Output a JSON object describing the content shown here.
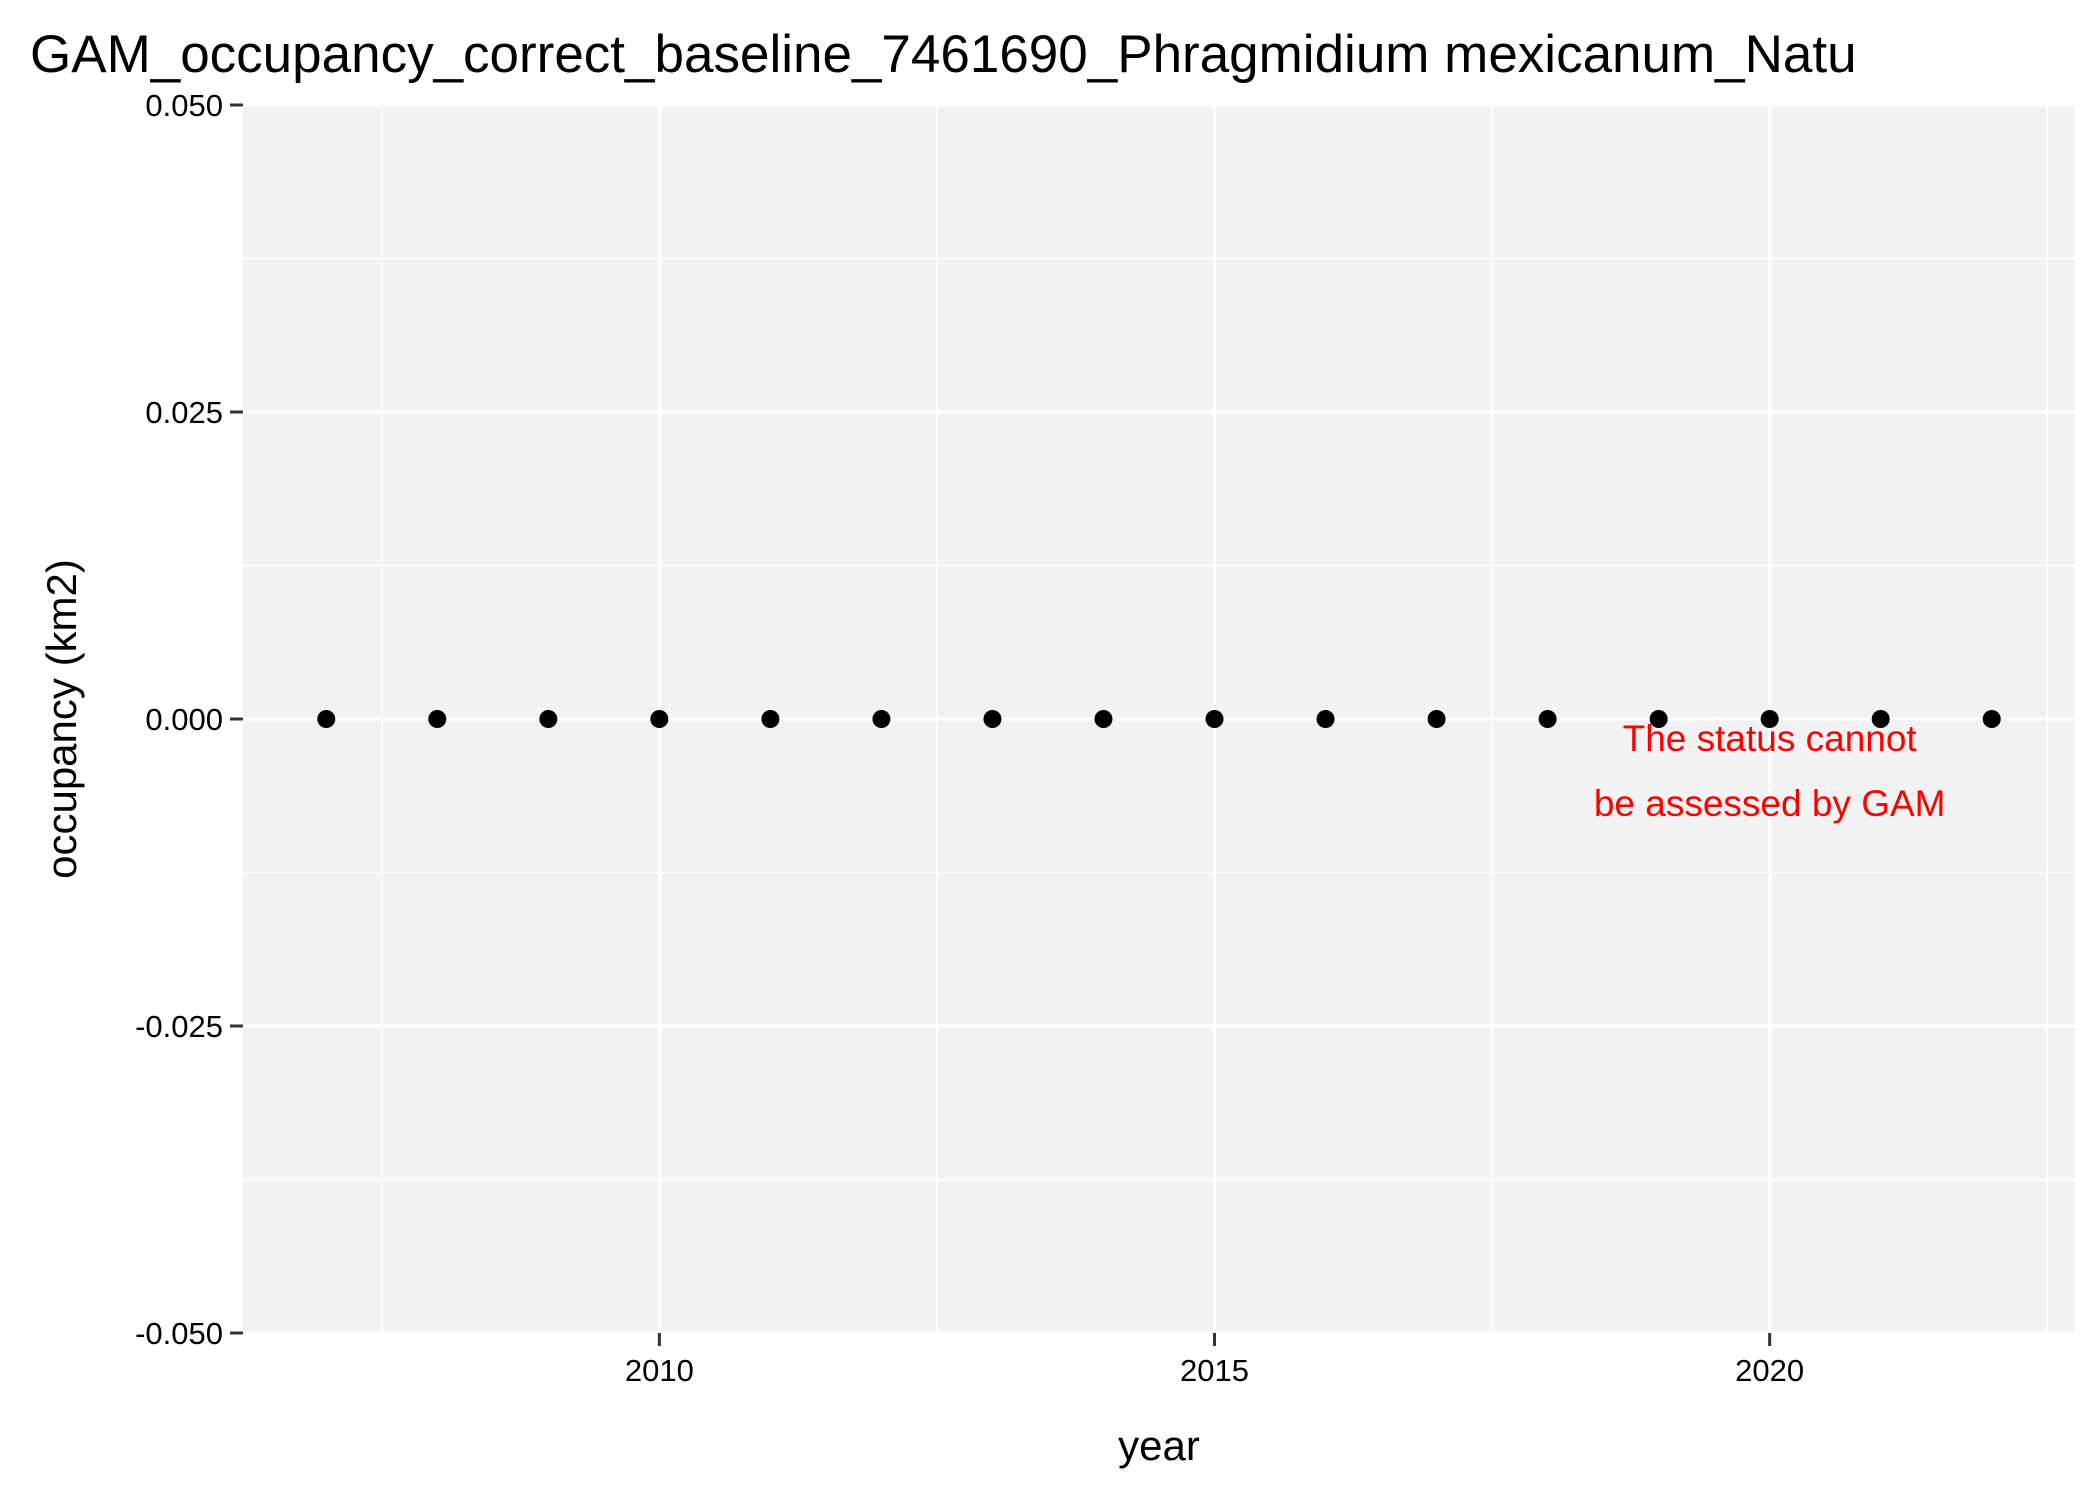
{
  "chart_data": {
    "type": "scatter",
    "title": "GAM_occupancy_correct_baseline_7461690_Phragmidium mexicanum_Natu",
    "xlabel": "year",
    "ylabel": "occupancy (km2)",
    "xlim": [
      2006.25,
      2022.75
    ],
    "ylim": [
      -0.05,
      0.05
    ],
    "x_ticks": [
      2010,
      2015,
      2020
    ],
    "y_ticks": [
      -0.05,
      -0.025,
      0,
      0.025,
      0.05
    ],
    "x_tick_labels": [
      "2010",
      "2015",
      "2020"
    ],
    "y_tick_labels": [
      "-0.050",
      "-0.025",
      "0.000",
      "0.025",
      "0.050"
    ],
    "grid": true,
    "legend": "none",
    "points": [
      {
        "x": 2007,
        "y": 0
      },
      {
        "x": 2008,
        "y": 0
      },
      {
        "x": 2009,
        "y": 0
      },
      {
        "x": 2010,
        "y": 0
      },
      {
        "x": 2011,
        "y": 0
      },
      {
        "x": 2012,
        "y": 0
      },
      {
        "x": 2013,
        "y": 0
      },
      {
        "x": 2014,
        "y": 0
      },
      {
        "x": 2015,
        "y": 0
      },
      {
        "x": 2016,
        "y": 0
      },
      {
        "x": 2017,
        "y": 0
      },
      {
        "x": 2018,
        "y": 0
      },
      {
        "x": 2019,
        "y": 0
      },
      {
        "x": 2020,
        "y": 0
      },
      {
        "x": 2021,
        "y": 0
      },
      {
        "x": 2022,
        "y": 0
      }
    ],
    "annotation": {
      "lines": [
        "The status cannot",
        "be assessed by GAM"
      ],
      "color": "#ff0000"
    },
    "colors": {
      "panel": "#f2f2f2",
      "grid": "#ffffff",
      "points": "#000000"
    }
  }
}
